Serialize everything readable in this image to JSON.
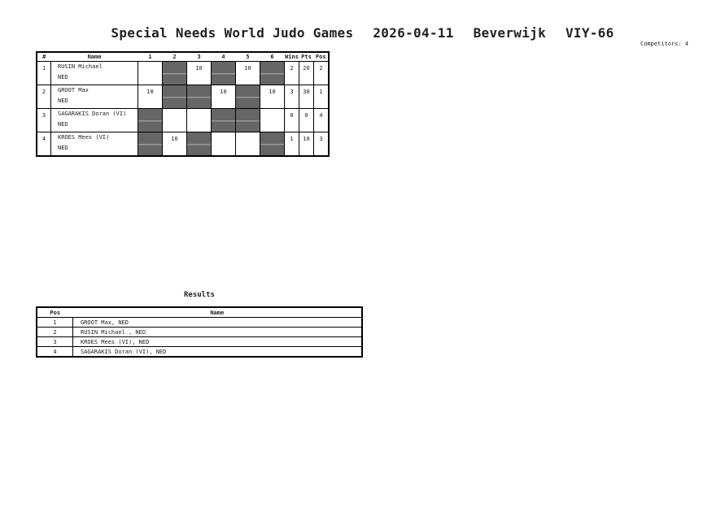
{
  "header": {
    "event": "Special Needs World Judo Games",
    "date": "2026-04-11",
    "location": "Beverwijk",
    "category": "VIY-66",
    "competitors": "Competitors: 4"
  },
  "pool": {
    "columns": [
      "#",
      "Name",
      "1",
      "2",
      "3",
      "4",
      "5",
      "6",
      "Wins",
      "Pts",
      "Pos"
    ],
    "rows": [
      {
        "num": "1",
        "name": "RUSIN Michael",
        "country": "NED",
        "scores": [
          "",
          "",
          "10",
          "",
          "10",
          ""
        ],
        "grey": [
          false,
          true,
          false,
          true,
          false,
          true
        ],
        "wins": "2",
        "pts": "20",
        "pos": "2"
      },
      {
        "num": "2",
        "name": "GROOT Max",
        "country": "NED",
        "scores": [
          "10",
          "",
          "",
          "10",
          "",
          "10"
        ],
        "grey": [
          false,
          true,
          true,
          false,
          true,
          false
        ],
        "wins": "3",
        "pts": "30",
        "pos": "1"
      },
      {
        "num": "3",
        "name": "SAGARAKIS Doran (VI)",
        "country": "NED",
        "scores": [
          "",
          "",
          "",
          "",
          "",
          ""
        ],
        "grey": [
          true,
          false,
          false,
          true,
          true,
          false
        ],
        "wins": "0",
        "pts": "0",
        "pos": "4"
      },
      {
        "num": "4",
        "name": "KROES Mees (VI)",
        "country": "NED",
        "scores": [
          "",
          "10",
          "",
          "",
          "",
          ""
        ],
        "grey": [
          true,
          false,
          true,
          false,
          false,
          true
        ],
        "wins": "1",
        "pts": "10",
        "pos": "3"
      }
    ]
  },
  "results": {
    "title": "Results",
    "columns": [
      "Pos",
      "Name"
    ],
    "rows": [
      {
        "pos": "1",
        "name": "GROOT Max, NED"
      },
      {
        "pos": "2",
        "name": "RUSIN Michael , NED"
      },
      {
        "pos": "3",
        "name": "KROES Mees (VI), NED"
      },
      {
        "pos": "4",
        "name": "SAGARAKIS Doran (VI), NED"
      }
    ]
  }
}
